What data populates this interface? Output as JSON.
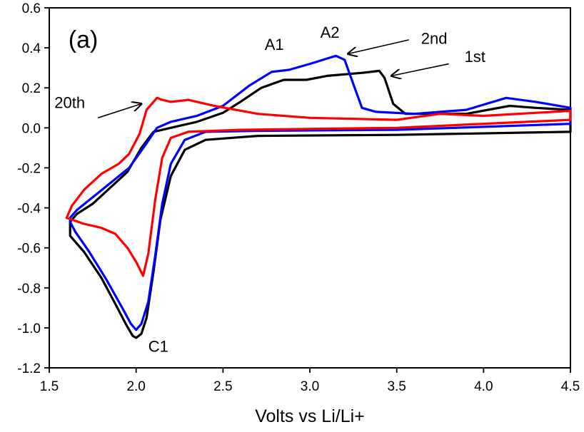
{
  "chart_data": {
    "type": "line",
    "title": "",
    "xlabel": "Volts vs Li/Li+",
    "ylabel": "",
    "xlim": [
      1.5,
      4.5
    ],
    "ylim": [
      -1.2,
      0.6
    ],
    "xticks": [
      "1.5",
      "2.0",
      "2.5",
      "3.0",
      "3.5",
      "4.0",
      "4.5"
    ],
    "yticks": [
      "-1.2",
      "-1.0",
      "-0.8",
      "-0.6",
      "-0.4",
      "-0.2",
      "0.0",
      "0.2",
      "0.4",
      "0.6"
    ],
    "grid": false,
    "series": [
      {
        "color": "#000000",
        "points": [
          [
            1.62,
            -0.52
          ],
          [
            1.62,
            -0.54
          ],
          [
            1.7,
            -0.62
          ],
          [
            1.8,
            -0.75
          ],
          [
            1.88,
            -0.88
          ],
          [
            1.94,
            -0.98
          ],
          [
            1.98,
            -1.04
          ],
          [
            2.0,
            -1.05
          ],
          [
            2.03,
            -1.03
          ],
          [
            2.06,
            -0.95
          ],
          [
            2.1,
            -0.72
          ],
          [
            2.14,
            -0.46
          ],
          [
            2.2,
            -0.24
          ],
          [
            2.28,
            -0.11
          ],
          [
            2.4,
            -0.06
          ],
          [
            2.7,
            -0.04
          ],
          [
            3.5,
            -0.035
          ],
          [
            4.5,
            -0.02
          ],
          [
            4.5,
            0.09
          ],
          [
            4.3,
            0.1
          ],
          [
            4.15,
            0.11
          ],
          [
            3.9,
            0.07
          ],
          [
            3.55,
            0.07
          ],
          [
            3.48,
            0.12
          ],
          [
            3.43,
            0.25
          ],
          [
            3.4,
            0.285
          ],
          [
            3.3,
            0.275
          ],
          [
            3.1,
            0.26
          ],
          [
            2.98,
            0.24
          ],
          [
            2.85,
            0.24
          ],
          [
            2.72,
            0.2
          ],
          [
            2.6,
            0.13
          ],
          [
            2.5,
            0.075
          ],
          [
            2.35,
            0.03
          ],
          [
            2.2,
            0.0
          ],
          [
            2.1,
            -0.02
          ],
          [
            2.03,
            -0.1
          ],
          [
            1.95,
            -0.22
          ],
          [
            1.85,
            -0.3
          ],
          [
            1.75,
            -0.38
          ],
          [
            1.66,
            -0.43
          ],
          [
            1.62,
            -0.47
          ],
          [
            1.62,
            -0.52
          ]
        ]
      },
      {
        "color": "#0000ff",
        "points": [
          [
            1.62,
            -0.47
          ],
          [
            1.65,
            -0.52
          ],
          [
            1.73,
            -0.62
          ],
          [
            1.83,
            -0.76
          ],
          [
            1.92,
            -0.9
          ],
          [
            1.97,
            -0.98
          ],
          [
            2.0,
            -1.01
          ],
          [
            2.03,
            -0.98
          ],
          [
            2.07,
            -0.87
          ],
          [
            2.11,
            -0.64
          ],
          [
            2.15,
            -0.38
          ],
          [
            2.2,
            -0.18
          ],
          [
            2.28,
            -0.06
          ],
          [
            2.4,
            -0.02
          ],
          [
            2.7,
            -0.015
          ],
          [
            3.5,
            -0.01
          ],
          [
            4.5,
            0.02
          ],
          [
            4.5,
            0.1
          ],
          [
            4.3,
            0.13
          ],
          [
            4.13,
            0.15
          ],
          [
            3.9,
            0.09
          ],
          [
            3.6,
            0.07
          ],
          [
            3.38,
            0.08
          ],
          [
            3.3,
            0.1
          ],
          [
            3.25,
            0.22
          ],
          [
            3.2,
            0.34
          ],
          [
            3.15,
            0.36
          ],
          [
            3.0,
            0.32
          ],
          [
            2.88,
            0.29
          ],
          [
            2.78,
            0.28
          ],
          [
            2.65,
            0.21
          ],
          [
            2.5,
            0.11
          ],
          [
            2.35,
            0.06
          ],
          [
            2.2,
            0.03
          ],
          [
            2.12,
            0.0
          ],
          [
            2.05,
            -0.09
          ],
          [
            1.96,
            -0.2
          ],
          [
            1.86,
            -0.27
          ],
          [
            1.76,
            -0.34
          ],
          [
            1.66,
            -0.41
          ],
          [
            1.62,
            -0.45
          ],
          [
            1.62,
            -0.47
          ]
        ]
      },
      {
        "color": "#ff0000",
        "points": [
          [
            1.6,
            -0.45
          ],
          [
            1.7,
            -0.48
          ],
          [
            1.8,
            -0.5
          ],
          [
            1.88,
            -0.53
          ],
          [
            1.95,
            -0.6
          ],
          [
            2.0,
            -0.67
          ],
          [
            2.04,
            -0.74
          ],
          [
            2.07,
            -0.63
          ],
          [
            2.11,
            -0.36
          ],
          [
            2.15,
            -0.15
          ],
          [
            2.2,
            -0.05
          ],
          [
            2.3,
            -0.02
          ],
          [
            2.6,
            -0.01
          ],
          [
            3.5,
            0.0
          ],
          [
            4.5,
            0.04
          ],
          [
            4.5,
            0.085
          ],
          [
            4.0,
            0.06
          ],
          [
            3.75,
            0.07
          ],
          [
            3.5,
            0.04
          ],
          [
            3.0,
            0.05
          ],
          [
            2.7,
            0.07
          ],
          [
            2.45,
            0.11
          ],
          [
            2.3,
            0.14
          ],
          [
            2.2,
            0.13
          ],
          [
            2.15,
            0.14
          ],
          [
            2.12,
            0.15
          ],
          [
            2.06,
            0.09
          ],
          [
            2.02,
            -0.03
          ],
          [
            1.96,
            -0.13
          ],
          [
            1.9,
            -0.18
          ],
          [
            1.8,
            -0.23
          ],
          [
            1.7,
            -0.31
          ],
          [
            1.63,
            -0.39
          ],
          [
            1.6,
            -0.45
          ]
        ]
      }
    ],
    "annotations": [
      {
        "text": "(a)",
        "x": 1.61,
        "y": 0.4,
        "style": "panel"
      },
      {
        "text": "A1",
        "x": 2.74,
        "y": 0.39
      },
      {
        "text": "A2",
        "x": 3.06,
        "y": 0.45
      },
      {
        "text": "2nd",
        "x": 3.64,
        "y": 0.42
      },
      {
        "text": "1st",
        "x": 3.89,
        "y": 0.33
      },
      {
        "text": "20th",
        "x": 1.53,
        "y": 0.1
      },
      {
        "text": "C1",
        "x": 2.07,
        "y": -1.12
      }
    ],
    "arrows": [
      {
        "from": [
          3.57,
          0.44
        ],
        "to": [
          3.22,
          0.37
        ]
      },
      {
        "from": [
          3.8,
          0.32
        ],
        "to": [
          3.47,
          0.26
        ]
      },
      {
        "from": [
          1.78,
          0.05
        ],
        "to": [
          2.03,
          0.12
        ]
      }
    ]
  }
}
